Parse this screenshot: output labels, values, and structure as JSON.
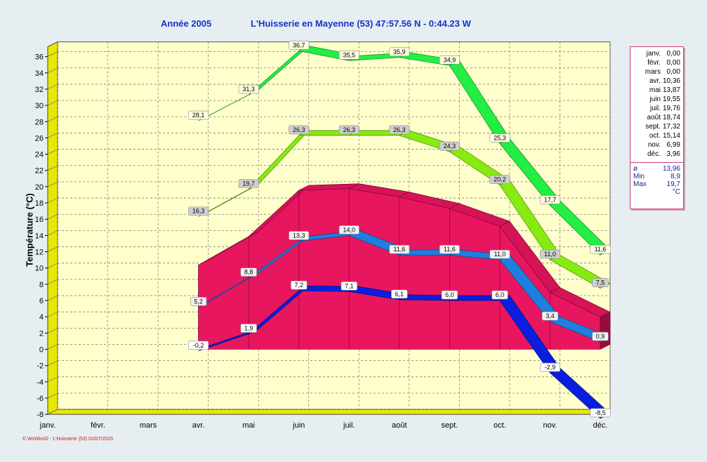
{
  "header": {
    "year_label": "Année  2005",
    "station": "L'Huisserie en Mayenne (53) 47:57.56 N - 0:44.23 W"
  },
  "footer": {
    "text": "© WxWin32 - L'Huisserie (53) 02/07/2020"
  },
  "legend": {
    "items": [
      {
        "month": "janv.",
        "value": "0,00"
      },
      {
        "month": "févr.",
        "value": "0,00"
      },
      {
        "month": "mars",
        "value": "0,00"
      },
      {
        "month": "avr.",
        "value": "10,36"
      },
      {
        "month": "mai",
        "value": "13,87"
      },
      {
        "month": "juin",
        "value": "19,55"
      },
      {
        "month": "juil.",
        "value": "19,76"
      },
      {
        "month": "août",
        "value": "18,74"
      },
      {
        "month": "sept.",
        "value": "17,32"
      },
      {
        "month": "oct.",
        "value": "15,14"
      },
      {
        "month": "nov.",
        "value": "6,99"
      },
      {
        "month": "déc.",
        "value": "3,96"
      }
    ],
    "stats": [
      {
        "label": "ø",
        "value": "13,96"
      },
      {
        "label": "Min",
        "value": "8,9"
      },
      {
        "label": "Max",
        "value": "19,7"
      }
    ],
    "unit": "°C"
  },
  "colors": {
    "wall": "#ffffcc",
    "floor": "#e8e800",
    "pink": "#e8165f",
    "light_blue": "#1e7fe0",
    "dark_blue": "#0a1ee0",
    "light_green": "#86ec10",
    "bright_green": "#22ee44"
  },
  "chart_data": {
    "type": "line",
    "categories": [
      "janv.",
      "févr.",
      "mars",
      "avr.",
      "mai",
      "juin",
      "juil.",
      "août",
      "sept.",
      "oct.",
      "nov.",
      "déc."
    ],
    "ylabel": "Température  (°C)",
    "ylim": [
      -8,
      36
    ],
    "yticks": [
      -8,
      -6,
      -4,
      -2,
      0,
      2,
      4,
      6,
      8,
      10,
      12,
      14,
      16,
      18,
      20,
      22,
      24,
      26,
      28,
      30,
      32,
      34,
      36
    ],
    "grid": true,
    "legend_position": "right",
    "series": [
      {
        "values": [
          null,
          null,
          null,
          28.1,
          31.3,
          36.7,
          35.5,
          35.9,
          34.9,
          25.3,
          17.7,
          11.6
        ],
        "labels": [
          "",
          "",
          "",
          "28,1",
          "31,3",
          "36,7",
          "35,5",
          "35,9",
          "34,9",
          "25,3",
          "17,7",
          "11,6"
        ]
      },
      {
        "values": [
          null,
          null,
          null,
          16.3,
          19.7,
          26.3,
          26.3,
          26.3,
          24.3,
          20.2,
          11.0,
          7.5
        ],
        "labels": [
          "",
          "",
          "",
          "16,3",
          "19,7",
          "26,3",
          "26,3",
          "26,3",
          "24,3",
          "20,2",
          "11,0",
          "7,5"
        ]
      },
      {
        "values": [
          null,
          null,
          null,
          10.36,
          13.87,
          19.55,
          19.76,
          18.74,
          17.32,
          15.14,
          6.99,
          3.96
        ]
      },
      {
        "values": [
          null,
          null,
          null,
          5.2,
          8.8,
          13.3,
          14.0,
          11.6,
          11.6,
          11.0,
          3.4,
          0.9
        ],
        "labels": [
          "",
          "",
          "",
          "5,2",
          "8,8",
          "13,3",
          "14,0",
          "11,6",
          "11,6",
          "11,0",
          "3,4",
          "0,9"
        ]
      },
      {
        "values": [
          null,
          null,
          null,
          -0.2,
          1.9,
          7.2,
          7.1,
          6.1,
          6.0,
          6.0,
          -2.9,
          -8.5
        ],
        "labels": [
          "",
          "",
          "",
          "-0,2",
          "1,9",
          "7,2",
          "7,1",
          "6,1",
          "6,0",
          "6,0",
          "-2,9",
          "-8,5"
        ]
      }
    ]
  }
}
